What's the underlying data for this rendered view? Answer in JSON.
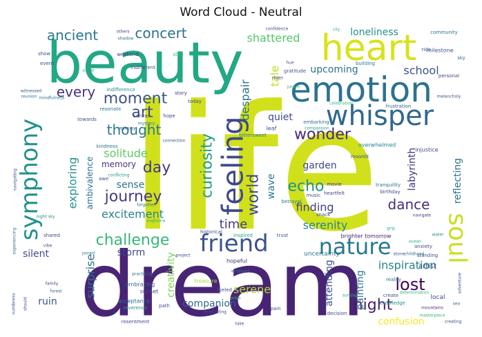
{
  "chart_data": {
    "type": "wordcloud",
    "title": "Word Cloud - Neutral",
    "words": [
      {
        "text": "life",
        "weight": 100,
        "color": "#d0e11c"
      },
      {
        "text": "dream",
        "weight": 92,
        "color": "#482475"
      },
      {
        "text": "beauty",
        "weight": 60,
        "color": "#22a884"
      },
      {
        "text": "heart",
        "weight": 42,
        "color": "#d8e219"
      },
      {
        "text": "emotion",
        "weight": 40,
        "color": "#2c728e"
      },
      {
        "text": "whisper",
        "weight": 34,
        "color": "#31688e"
      },
      {
        "text": "nature",
        "weight": 30,
        "color": "#2a788e"
      },
      {
        "text": "friend",
        "weight": 28,
        "color": "#3b528b"
      },
      {
        "text": "soul",
        "weight": 28,
        "color": "#c8e020"
      },
      {
        "text": "feeling",
        "weight": 34,
        "color": "#3e4989"
      },
      {
        "text": "symphony",
        "weight": 30,
        "color": "#21918c"
      },
      {
        "text": "ancient",
        "weight": 18,
        "color": "#2a788e"
      },
      {
        "text": "concert",
        "weight": 18,
        "color": "#2c728e"
      },
      {
        "text": "every",
        "weight": 18,
        "color": "#46337e"
      },
      {
        "text": "moment",
        "weight": 18,
        "color": "#3b528b"
      },
      {
        "text": "art",
        "weight": 20,
        "color": "#3e4989"
      },
      {
        "text": "thought",
        "weight": 18,
        "color": "#2a788e"
      },
      {
        "text": "journey",
        "weight": 18,
        "color": "#443983"
      },
      {
        "text": "challenge",
        "weight": 18,
        "color": "#35b779"
      },
      {
        "text": "curiosity",
        "weight": 18,
        "color": "#1fa187"
      },
      {
        "text": "world",
        "weight": 18,
        "color": "#3e4989"
      },
      {
        "text": "echo",
        "weight": 18,
        "color": "#21918c"
      },
      {
        "text": "wonder",
        "weight": 17,
        "color": "#482878"
      },
      {
        "text": "night",
        "weight": 18,
        "color": "#481a6c"
      },
      {
        "text": "lost",
        "weight": 18,
        "color": "#440154"
      },
      {
        "text": "dance",
        "weight": 16,
        "color": "#472c7a"
      },
      {
        "text": "time",
        "weight": 16,
        "color": "#433e85"
      },
      {
        "text": "day",
        "weight": 16,
        "color": "#453781"
      },
      {
        "text": "shattered",
        "weight": 14,
        "color": "#54c568"
      },
      {
        "text": "loneliness",
        "weight": 13,
        "color": "#21918c"
      },
      {
        "text": "upcoming",
        "weight": 13,
        "color": "#2c728e"
      },
      {
        "text": "school",
        "weight": 13,
        "color": "#3b528b"
      },
      {
        "text": "tale",
        "weight": 13,
        "color": "#bddf26"
      },
      {
        "text": "despair",
        "weight": 13,
        "color": "#2c728e"
      },
      {
        "text": "quiet",
        "weight": 12,
        "color": "#3e4989"
      },
      {
        "text": "solitude",
        "weight": 13,
        "color": "#5ec962"
      },
      {
        "text": "exploring",
        "weight": 14,
        "color": "#21918c"
      },
      {
        "text": "ambivalence",
        "weight": 11,
        "color": "#2c728e"
      },
      {
        "text": "memory",
        "weight": 12,
        "color": "#46327e"
      },
      {
        "text": "sense",
        "weight": 12,
        "color": "#2c728e"
      },
      {
        "text": "excitement",
        "weight": 13,
        "color": "#26828e"
      },
      {
        "text": "garden",
        "weight": 12,
        "color": "#3e4989"
      },
      {
        "text": "labyrinth",
        "weight": 12,
        "color": "#46337e"
      },
      {
        "text": "reflecting",
        "weight": 12,
        "color": "#2c728e"
      },
      {
        "text": "wave",
        "weight": 12,
        "color": "#2a788e"
      },
      {
        "text": "finding",
        "weight": 13,
        "color": "#433e85"
      },
      {
        "text": "serenity",
        "weight": 13,
        "color": "#25858e"
      },
      {
        "text": "surprise",
        "weight": 13,
        "color": "#2c728e"
      },
      {
        "text": "storm",
        "weight": 12,
        "color": "#404688"
      },
      {
        "text": "silent",
        "weight": 12,
        "color": "#3e4989"
      },
      {
        "text": "creativity",
        "weight": 12,
        "color": "#7ad151"
      },
      {
        "text": "serene",
        "weight": 12,
        "color": "#b5de2b"
      },
      {
        "text": "companion",
        "weight": 12,
        "color": "#31688e"
      },
      {
        "text": "attending",
        "weight": 12,
        "color": "#3b528b"
      },
      {
        "text": "painting",
        "weight": 12,
        "color": "#2a788e"
      },
      {
        "text": "inspiration",
        "weight": 13,
        "color": "#26828e"
      },
      {
        "text": "artist",
        "weight": 10,
        "color": "#3e4989"
      },
      {
        "text": "confusion",
        "weight": 12,
        "color": "#fde725"
      },
      {
        "text": "ruin",
        "weight": 12,
        "color": "#3b528b"
      },
      {
        "text": "brighter tomorrow",
        "weight": 8,
        "color": "#482173"
      },
      {
        "text": "uncertainty",
        "weight": 8,
        "color": "#2a788e"
      },
      {
        "text": "hopeful",
        "weight": 7,
        "color": "#46327e"
      },
      {
        "text": "embracing",
        "weight": 7,
        "color": "#31688e"
      },
      {
        "text": "acceptance",
        "weight": 7,
        "color": "#2c728e"
      },
      {
        "text": "sunset",
        "weight": 7,
        "color": "#3b528b"
      },
      {
        "text": "reverence",
        "weight": 7,
        "color": "#21918c"
      },
      {
        "text": "resentment",
        "weight": 6,
        "color": "#3e4989"
      },
      {
        "text": "treasure",
        "weight": 7,
        "color": "#a5db36"
      },
      {
        "text": "family",
        "weight": 6,
        "color": "#443983"
      },
      {
        "text": "forest",
        "weight": 6,
        "color": "#31688e"
      },
      {
        "text": "create",
        "weight": 6,
        "color": "#3b528b"
      },
      {
        "text": "reality",
        "weight": 6,
        "color": "#2c728e"
      },
      {
        "text": "knowledge",
        "weight": 6,
        "color": "#21918c"
      },
      {
        "text": "local",
        "weight": 7,
        "color": "#3e4989"
      },
      {
        "text": "masterpiece",
        "weight": 5,
        "color": "#35b779"
      },
      {
        "text": "mountains",
        "weight": 5,
        "color": "#472c7a"
      },
      {
        "text": "heartfelt",
        "weight": 6,
        "color": "#404688"
      },
      {
        "text": "music",
        "weight": 6,
        "color": "#3b528b"
      },
      {
        "text": "movie",
        "weight": 6,
        "color": "#46327e"
      },
      {
        "text": "snack",
        "weight": 6,
        "color": "#3e4989"
      },
      {
        "text": "historical",
        "weight": 6,
        "color": "#3e4989"
      },
      {
        "text": "inspired",
        "weight": 6,
        "color": "#22a884"
      },
      {
        "text": "trust",
        "weight": 6,
        "color": "#3b528b"
      },
      {
        "text": "euphoria",
        "weight": 5,
        "color": "#22a884"
      },
      {
        "text": "shared",
        "weight": 6,
        "color": "#3e4989"
      },
      {
        "text": "forgotten",
        "weight": 5,
        "color": "#2c728e"
      },
      {
        "text": "night sky",
        "weight": 5,
        "color": "#21918c"
      },
      {
        "text": "kindness",
        "weight": 6,
        "color": "#2c728e"
      },
      {
        "text": "conflicting",
        "weight": 5,
        "color": "#21918c"
      },
      {
        "text": "awe",
        "weight": 6,
        "color": "#3b528b"
      },
      {
        "text": "canvas",
        "weight": 6,
        "color": "#3e4989"
      },
      {
        "text": "resonate",
        "weight": 6,
        "color": "#2c728e"
      },
      {
        "text": "towards",
        "weight": 6,
        "color": "#3b528b"
      },
      {
        "text": "hope",
        "weight": 6,
        "color": "#3e4989"
      },
      {
        "text": "mystery",
        "weight": 5,
        "color": "#2a788e"
      },
      {
        "text": "indifference",
        "weight": 6,
        "color": "#21918c"
      },
      {
        "text": "story",
        "weight": 6,
        "color": "#46337e"
      },
      {
        "text": "today",
        "weight": 6,
        "color": "#3e4989"
      },
      {
        "text": "embarking",
        "weight": 6,
        "color": "#2c728e"
      },
      {
        "text": "compassion",
        "weight": 5,
        "color": "#22a884"
      },
      {
        "text": "frustration",
        "weight": 6,
        "color": "#31688e"
      },
      {
        "text": "celebration",
        "weight": 5,
        "color": "#35b779"
      },
      {
        "text": "leaf",
        "weight": 7,
        "color": "#3b528b"
      },
      {
        "text": "bittersweet",
        "weight": 6,
        "color": "#2a788e"
      },
      {
        "text": "overwhelmed",
        "weight": 7,
        "color": "#26828e"
      },
      {
        "text": "injustice",
        "weight": 7,
        "color": "#3e4989"
      },
      {
        "text": "moonlit",
        "weight": 6,
        "color": "#3b528b"
      },
      {
        "text": "tranquility",
        "weight": 6,
        "color": "#2c728e"
      },
      {
        "text": "birthday",
        "weight": 6,
        "color": "#3e4989"
      },
      {
        "text": "betrayal",
        "weight": 6,
        "color": "#2a788e"
      },
      {
        "text": "navigate",
        "weight": 5,
        "color": "#46337e"
      },
      {
        "text": "milestone",
        "weight": 7,
        "color": "#3b528b"
      },
      {
        "text": "community",
        "weight": 7,
        "color": "#2c728e"
      },
      {
        "text": "personal",
        "weight": 6,
        "color": "#3e4989"
      },
      {
        "text": "ride",
        "weight": 6,
        "color": "#3b528b"
      },
      {
        "text": "sky",
        "weight": 6,
        "color": "#2c728e"
      },
      {
        "text": "melancholy",
        "weight": 5,
        "color": "#3b528b"
      },
      {
        "text": "water",
        "weight": 5,
        "color": "#21918c"
      },
      {
        "text": "anxiety",
        "weight": 6,
        "color": "#3e4989"
      },
      {
        "text": "standing",
        "weight": 6,
        "color": "#3b528b"
      },
      {
        "text": "ocean",
        "weight": 5,
        "color": "#22a884"
      },
      {
        "text": "stone",
        "weight": 5,
        "color": "#3b528b"
      },
      {
        "text": "childhood",
        "weight": 5,
        "color": "#2c728e"
      },
      {
        "text": "witnessed",
        "weight": 5,
        "color": "#3b528b"
      },
      {
        "text": "reunion",
        "weight": 5,
        "color": "#2c728e"
      },
      {
        "text": "show",
        "weight": 6,
        "color": "#3b528b"
      },
      {
        "text": "event",
        "weight": 6,
        "color": "#3e4989"
      },
      {
        "text": "weekend",
        "weight": 6,
        "color": "#46337e"
      },
      {
        "text": "others",
        "weight": 5,
        "color": "#3e4989"
      },
      {
        "text": "shadow",
        "weight": 5,
        "color": "#2c728e"
      },
      {
        "text": "confidence",
        "weight": 5,
        "color": "#3b528b"
      },
      {
        "text": "city",
        "weight": 5,
        "color": "#35b779"
      },
      {
        "text": "gratitude",
        "weight": 6,
        "color": "#3b528b"
      },
      {
        "text": "river",
        "weight": 6,
        "color": "#3e4989"
      },
      {
        "text": "peace",
        "weight": 5,
        "color": "#35b779"
      },
      {
        "text": "building",
        "weight": 6,
        "color": "#2c728e"
      },
      {
        "text": "hue",
        "weight": 5,
        "color": "#3b528b"
      },
      {
        "text": "step",
        "weight": 6,
        "color": "#35b779"
      },
      {
        "text": "color",
        "weight": 6,
        "color": "#22a884"
      },
      {
        "text": "indifferent",
        "weight": 6,
        "color": "#3e4989"
      },
      {
        "text": "jealousy",
        "weight": 5,
        "color": "#3b528b"
      },
      {
        "text": "mindfulness",
        "weight": 5,
        "color": "#2c728e"
      },
      {
        "text": "connection",
        "weight": 5,
        "color": "#3b528b"
      },
      {
        "text": "vibe",
        "weight": 5,
        "color": "#3b528b"
      },
      {
        "text": "joined",
        "weight": 5,
        "color": "#2c728e"
      },
      {
        "text": "project",
        "weight": 5,
        "color": "#3e4989"
      },
      {
        "text": "practicing",
        "weight": 5,
        "color": "#2c728e"
      },
      {
        "text": "wrapped",
        "weight": 5,
        "color": "#2c728e"
      },
      {
        "text": "fueled",
        "weight": 6,
        "color": "#3b528b"
      },
      {
        "text": "pride",
        "weight": 5,
        "color": "#35b779"
      },
      {
        "text": "celebrating",
        "weight": 5,
        "color": "#3e4989"
      },
      {
        "text": "take",
        "weight": 5,
        "color": "#3b528b"
      },
      {
        "text": "pain",
        "weight": 6,
        "color": "#3b528b"
      },
      {
        "text": "sunday",
        "weight": 5,
        "color": "#22a884"
      },
      {
        "text": "creating",
        "weight": 5,
        "color": "#3e4989"
      },
      {
        "text": "sea",
        "weight": 5,
        "color": "#2c728e"
      },
      {
        "text": "numbness",
        "weight": 5,
        "color": "#3b528b"
      },
      {
        "text": "should",
        "weight": 5,
        "color": "#3e4989"
      },
      {
        "text": "determination",
        "weight": 5,
        "color": "#35b779"
      },
      {
        "text": "adventure",
        "weight": 5,
        "color": "#3b528b"
      },
      {
        "text": "grip",
        "weight": 5,
        "color": "#22a884"
      },
      {
        "text": "decision",
        "weight": 6,
        "color": "#3e4989"
      },
      {
        "text": "path",
        "weight": 6,
        "color": "#3b528b"
      },
      {
        "text": "navigating",
        "weight": 5,
        "color": "#3b528b"
      },
      {
        "text": "experiencing",
        "weight": 5,
        "color": "#2c728e"
      }
    ]
  }
}
